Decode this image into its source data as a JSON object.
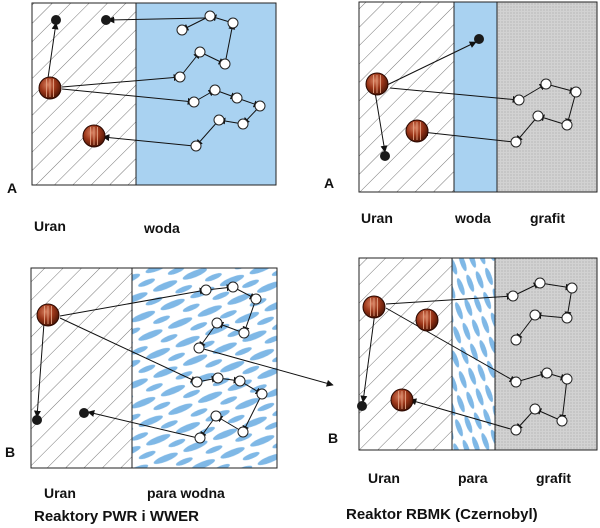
{
  "panels": {
    "top_left": {
      "row_letter": "A",
      "label_fuel": "Uran",
      "label_moderator": "woda"
    },
    "top_right": {
      "row_letter": "A",
      "label_fuel": "Uran",
      "label_coolant": "woda",
      "label_moderator": "grafit"
    },
    "bottom_left": {
      "row_letter": "B",
      "label_fuel": "Uran",
      "label_moderator": "para wodna",
      "caption": "Reaktory PWR i WWER"
    },
    "bottom_right": {
      "row_letter": "B",
      "label_fuel": "Uran",
      "label_coolant": "para",
      "label_moderator": "grafit",
      "caption": "Reaktor RBMK (Czernobyl)"
    }
  },
  "colors": {
    "water": "#a9d2f1",
    "steam_streak": "#7fb8e6",
    "graphite": "#d2d2d2",
    "uranium_core": "#8a2e12",
    "neutron_fast": "#1a1a1a",
    "neutron_thermal": "#ffffff"
  }
}
